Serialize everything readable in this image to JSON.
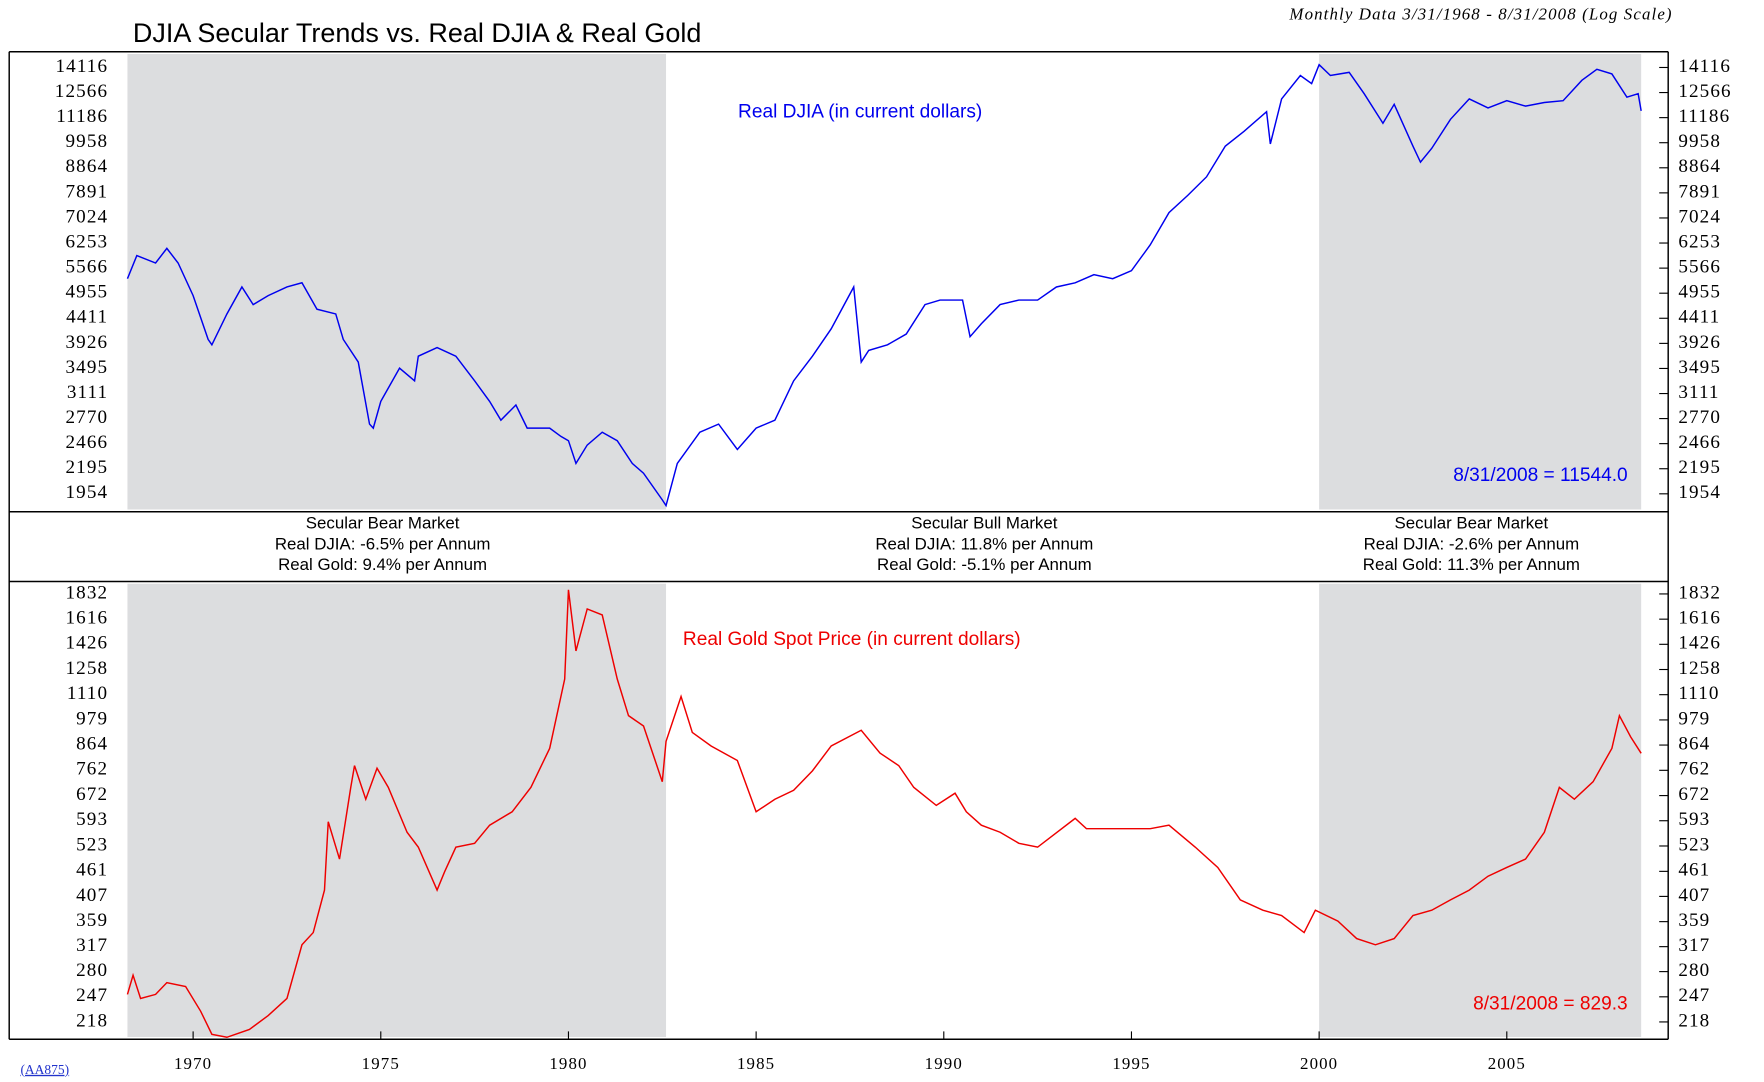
{
  "chart_data": [
    {
      "type": "line",
      "title": "DJIA Secular Trends vs. Real DJIA & Real Gold",
      "subtitle": "Monthly Data 3/31/1968 - 8/31/2008 (Log Scale)",
      "log": true,
      "xlim": [
        1965.1,
        2009.3
      ],
      "ylim": [
        1798,
        15185
      ],
      "yticks": [
        14116,
        12566,
        11186,
        9958,
        8864,
        7891,
        7024,
        6253,
        5566,
        4955,
        4411,
        3926,
        3495,
        3111,
        2770,
        2466,
        2195,
        1954
      ],
      "shaded": [
        [
          1968.25,
          1982.6
        ],
        [
          2000.0,
          2008.58
        ]
      ],
      "shade_color": "#dcdddf",
      "annotation": "8/31/2008 = 11544.0",
      "series": [
        {
          "name": "Real DJIA (in current dollars)",
          "color": "#0000ee",
          "x": [
            1968.25,
            1968.5,
            1969.0,
            1969.3,
            1969.6,
            1970.0,
            1970.4,
            1970.5,
            1970.9,
            1971.3,
            1971.6,
            1972.0,
            1972.5,
            1972.9,
            1973.3,
            1973.8,
            1974.0,
            1974.4,
            1974.7,
            1974.8,
            1975.0,
            1975.5,
            1975.9,
            1976.0,
            1976.5,
            1977.0,
            1977.5,
            1977.9,
            1978.2,
            1978.6,
            1978.9,
            1979.5,
            1979.8,
            1980.0,
            1980.2,
            1980.5,
            1980.9,
            1981.3,
            1981.7,
            1982.0,
            1982.5,
            1982.6,
            1982.9,
            1983.5,
            1984.0,
            1984.5,
            1985.0,
            1985.5,
            1986.0,
            1986.5,
            1987.0,
            1987.6,
            1987.8,
            1988.0,
            1988.5,
            1989.0,
            1989.5,
            1989.9,
            1990.5,
            1990.7,
            1991.0,
            1991.5,
            1992.0,
            1992.5,
            1993.0,
            1993.5,
            1994.0,
            1994.5,
            1995.0,
            1995.5,
            1996.0,
            1996.5,
            1997.0,
            1997.5,
            1998.0,
            1998.6,
            1998.7,
            1999.0,
            1999.5,
            1999.8,
            2000.0,
            2000.3,
            2000.8,
            2001.2,
            2001.7,
            2002.0,
            2002.5,
            2002.7,
            2003.0,
            2003.5,
            2004.0,
            2004.5,
            2005.0,
            2005.5,
            2006.0,
            2006.5,
            2007.0,
            2007.4,
            2007.8,
            2008.2,
            2008.5,
            2008.58
          ],
          "values": [
            5300,
            5900,
            5700,
            6100,
            5700,
            4900,
            4000,
            3900,
            4500,
            5100,
            4700,
            4900,
            5100,
            5200,
            4600,
            4500,
            4000,
            3600,
            2700,
            2650,
            3000,
            3500,
            3300,
            3700,
            3850,
            3700,
            3300,
            3000,
            2750,
            2950,
            2650,
            2650,
            2550,
            2500,
            2250,
            2450,
            2600,
            2500,
            2250,
            2150,
            1900,
            1850,
            2250,
            2600,
            2700,
            2400,
            2650,
            2750,
            3300,
            3700,
            4200,
            5100,
            3600,
            3800,
            3900,
            4100,
            4700,
            4800,
            4800,
            4050,
            4300,
            4700,
            4800,
            4800,
            5100,
            5200,
            5400,
            5300,
            5500,
            6200,
            7200,
            7800,
            8500,
            9800,
            10500,
            11500,
            9900,
            12200,
            13600,
            13100,
            14300,
            13600,
            13800,
            12500,
            10900,
            11900,
            9800,
            9100,
            9700,
            11100,
            12200,
            11700,
            12100,
            11800,
            12000,
            12100,
            13300,
            14000,
            13700,
            12300,
            12500,
            11544
          ]
        }
      ]
    },
    {
      "type": "line",
      "log": true,
      "xlim": [
        1965.1,
        2009.3
      ],
      "ylim": [
        200,
        1949
      ],
      "xticks": [
        1970,
        1975,
        1980,
        1985,
        1990,
        1995,
        2000,
        2005
      ],
      "yticks": [
        1832,
        1616,
        1426,
        1258,
        1110,
        979,
        864,
        762,
        672,
        593,
        523,
        461,
        407,
        359,
        317,
        280,
        247,
        218
      ],
      "shaded": [
        [
          1968.25,
          1982.6
        ],
        [
          2000.0,
          2008.58
        ]
      ],
      "shade_color": "#dcdddf",
      "annotation": "8/31/2008 = 829.3",
      "series": [
        {
          "name": "Real Gold Spot Price (in current dollars)",
          "color": "#ee0000",
          "x": [
            1968.25,
            1968.4,
            1968.6,
            1969.0,
            1969.3,
            1969.8,
            1970.2,
            1970.5,
            1970.9,
            1971.5,
            1972.0,
            1972.5,
            1972.9,
            1973.2,
            1973.5,
            1973.6,
            1973.9,
            1974.2,
            1974.3,
            1974.6,
            1974.9,
            1975.2,
            1975.7,
            1976.0,
            1976.5,
            1976.7,
            1977.0,
            1977.5,
            1977.9,
            1978.5,
            1979.0,
            1979.5,
            1979.9,
            1980.0,
            1980.2,
            1980.5,
            1980.9,
            1981.3,
            1981.6,
            1982.0,
            1982.5,
            1982.6,
            1983.0,
            1983.3,
            1983.8,
            1984.5,
            1985.0,
            1985.5,
            1986.0,
            1986.5,
            1987.0,
            1987.8,
            1988.3,
            1988.8,
            1989.2,
            1989.8,
            1990.3,
            1990.6,
            1991.0,
            1991.5,
            1992.0,
            1992.5,
            1993.5,
            1993.8,
            1994.5,
            1995.5,
            1996.0,
            1996.7,
            1997.3,
            1997.9,
            1998.5,
            1999.0,
            1999.6,
            1999.9,
            2000.5,
            2001.0,
            2001.5,
            2002.0,
            2002.5,
            2003.0,
            2003.5,
            2004.0,
            2004.5,
            2005.0,
            2005.5,
            2006.0,
            2006.4,
            2006.8,
            2007.3,
            2007.8,
            2008.0,
            2008.3,
            2008.58
          ],
          "values": [
            250,
            275,
            245,
            250,
            265,
            260,
            230,
            205,
            202,
            210,
            225,
            245,
            320,
            340,
            420,
            590,
            490,
            700,
            780,
            660,
            770,
            700,
            560,
            520,
            420,
            460,
            520,
            530,
            580,
            620,
            700,
            850,
            1200,
            1870,
            1380,
            1700,
            1650,
            1200,
            1000,
            950,
            720,
            880,
            1100,
            920,
            860,
            800,
            620,
            660,
            690,
            760,
            860,
            930,
            830,
            780,
            700,
            640,
            680,
            620,
            580,
            560,
            530,
            520,
            600,
            570,
            570,
            570,
            580,
            520,
            470,
            400,
            380,
            370,
            340,
            380,
            360,
            330,
            320,
            330,
            370,
            380,
            400,
            420,
            450,
            470,
            490,
            560,
            700,
            660,
            720,
            850,
            1000,
            900,
            829.3
          ]
        }
      ]
    }
  ],
  "periods": [
    [
      "Secular Bear Market",
      "Real DJIA: -6.5% per Annum",
      "Real Gold: 9.4% per Annum"
    ],
    [
      "Secular Bull Market",
      "Real DJIA: 11.8% per Annum",
      "Real Gold: -5.1% per Annum"
    ],
    [
      "Secular Bear Market",
      "Real DJIA: -2.6% per Annum",
      "Real Gold: 11.3% per Annum"
    ]
  ],
  "footnote": "(AA875)"
}
